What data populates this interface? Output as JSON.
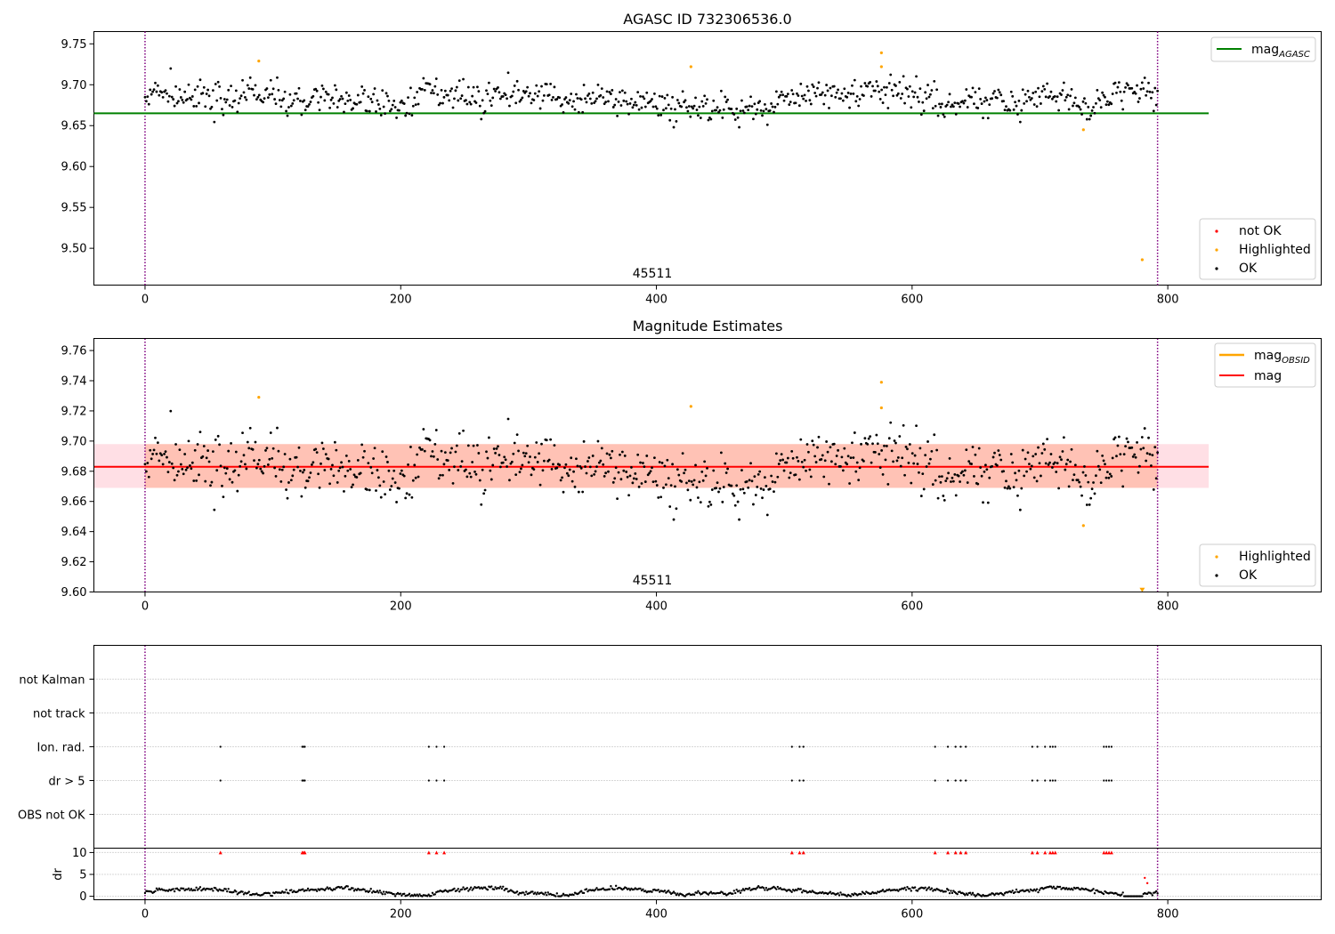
{
  "colors": {
    "ok": "#000000",
    "highlighted": "#ffa500",
    "not_ok": "#ff0000",
    "agasc_line": "#008000",
    "mag_line": "#ff0000",
    "mag_obsid_line": "#ffa500",
    "obsid_boundary": "#800080",
    "band_outer": "#ffc0cb",
    "band_inner": "#ffa07a"
  },
  "chart_data": [
    {
      "type": "scatter",
      "title": "AGASC ID 732306536.0",
      "xlim": [
        -40,
        920
      ],
      "ylim": [
        9.455,
        9.765
      ],
      "xticks": [
        "0",
        "200",
        "400",
        "600",
        "800"
      ],
      "yticks": [
        "9.50",
        "9.55",
        "9.60",
        "9.65",
        "9.70",
        "9.75"
      ],
      "obsid_label": "45511",
      "obsid_label_x": 396,
      "obsid_bounds": [
        0,
        792
      ],
      "reference_line": {
        "name": "mag_AGASC",
        "y": 9.665,
        "x": [
          -40,
          832
        ]
      },
      "legends": {
        "lines": [
          {
            "base": "mag",
            "sub": "AGASC",
            "color_key": "agasc_line"
          }
        ],
        "points": [
          {
            "label": "not OK",
            "color_key": "not_ok"
          },
          {
            "label": "Highlighted",
            "color_key": "highlighted"
          },
          {
            "label": "OK",
            "color_key": "ok"
          }
        ]
      },
      "highlighted_points": [
        [
          89,
          9.729
        ],
        [
          427,
          9.722
        ],
        [
          576,
          9.739
        ],
        [
          576,
          9.722
        ],
        [
          734,
          9.645
        ],
        [
          780,
          9.486
        ]
      ],
      "ok_series": {
        "x_range": [
          0,
          792
        ],
        "n": 790,
        "center": 9.683,
        "spread": 0.016,
        "min": 9.648,
        "max": 9.721
      }
    },
    {
      "type": "scatter",
      "title": "Magnitude Estimates",
      "xlim": [
        -40,
        920
      ],
      "ylim": [
        9.6,
        9.768
      ],
      "xticks": [
        "0",
        "200",
        "400",
        "600",
        "800"
      ],
      "yticks": [
        "9.60",
        "9.62",
        "9.64",
        "9.66",
        "9.68",
        "9.70",
        "9.72",
        "9.74",
        "9.76"
      ],
      "obsid_label": "45511",
      "obsid_label_x": 396,
      "obsid_bounds": [
        0,
        792
      ],
      "mag_line": {
        "y": 9.683,
        "x": [
          -40,
          832
        ]
      },
      "mag_obsid_line": {
        "y": 9.683,
        "x": [
          0,
          792
        ]
      },
      "band_outer": [
        9.669,
        9.698
      ],
      "band_inner": [
        9.669,
        9.698
      ],
      "legends": {
        "lines": [
          {
            "base": "mag",
            "sub": "OBSID",
            "color_key": "mag_obsid_line"
          },
          {
            "base": "mag",
            "sub": "",
            "color_key": "mag_line"
          }
        ],
        "points": [
          {
            "label": "Highlighted",
            "color_key": "highlighted"
          },
          {
            "label": "OK",
            "color_key": "ok"
          }
        ]
      },
      "highlighted_points": [
        [
          89,
          9.729
        ],
        [
          427,
          9.723
        ],
        [
          576,
          9.739
        ],
        [
          576,
          9.722
        ],
        [
          734,
          9.644
        ]
      ],
      "clipped_point": {
        "x": 780,
        "y": 9.601
      },
      "ok_series": {
        "x_range": [
          0,
          792
        ],
        "n": 790,
        "center": 9.683,
        "spread": 0.016,
        "min": 9.648,
        "max": 9.721
      }
    },
    {
      "type": "scatter",
      "xlim": [
        -40,
        920
      ],
      "categories": [
        "not Kalman",
        "not track",
        "Ion. rad.",
        "dr > 5",
        "OBS not OK"
      ],
      "xticks": [
        "0",
        "200",
        "400",
        "600",
        "800"
      ],
      "obsid_bounds": [
        0,
        792
      ],
      "flag_points": {
        "Ion. rad.": [
          59,
          123,
          124,
          125,
          222,
          228,
          234,
          506,
          512,
          515,
          618,
          628,
          634,
          638,
          642,
          694,
          698,
          704,
          708,
          710,
          712,
          750,
          752,
          754,
          756
        ],
        "dr > 5": [
          59,
          123,
          124,
          125,
          222,
          228,
          234,
          506,
          512,
          515,
          618,
          628,
          634,
          638,
          642,
          694,
          698,
          704,
          708,
          710,
          712,
          750,
          752,
          754,
          756
        ]
      }
    },
    {
      "type": "scatter",
      "ylabel": "dr",
      "xlim": [
        -40,
        920
      ],
      "ylim": [
        -0.8,
        11
      ],
      "xticks": [
        "0",
        "200",
        "400",
        "600",
        "800"
      ],
      "yticks": [
        "0",
        "5",
        "10"
      ],
      "obsid_bounds": [
        0,
        792
      ],
      "clipped_dr_x": [
        59,
        123,
        124,
        125,
        222,
        228,
        234,
        506,
        512,
        515,
        618,
        628,
        634,
        638,
        642,
        694,
        698,
        704,
        708,
        710,
        712,
        750,
        752,
        754,
        756
      ],
      "not_ok_points": [
        [
          782,
          4.2
        ],
        [
          784,
          3.0
        ]
      ],
      "dr_series": {
        "x_range": [
          0,
          792
        ],
        "n": 790,
        "min": 0.0,
        "max": 2.8
      }
    }
  ]
}
